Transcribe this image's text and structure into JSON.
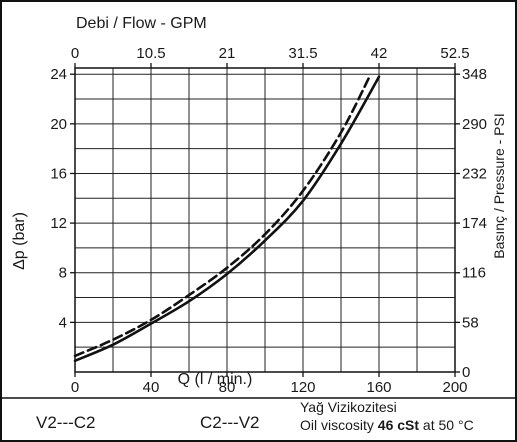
{
  "chart_data": {
    "type": "line",
    "title": "",
    "top_axis": {
      "label": "Debi / Flow - GPM",
      "ticks": [
        "0",
        "10.5",
        "21",
        "31.5",
        "42",
        "52.5"
      ],
      "range": [
        0,
        52.5
      ]
    },
    "x_axis": {
      "label": "Q (l / min.)",
      "ticks": [
        "0",
        "40",
        "80",
        "120",
        "160",
        "200"
      ],
      "range": [
        0,
        200
      ]
    },
    "y_axis": {
      "label": "Δp (bar)",
      "ticks": [
        "4",
        "8",
        "12",
        "16",
        "20",
        "24"
      ],
      "range": [
        0,
        24.5
      ]
    },
    "right_axis": {
      "label": "Basınç / Pressure - PSI",
      "ticks": [
        "0",
        "58",
        "116",
        "174",
        "232",
        "290",
        "348"
      ],
      "range": [
        0,
        355
      ]
    },
    "grid": true,
    "series": [
      {
        "name": "V2---C2",
        "style": "solid",
        "color": "#111111",
        "x": [
          0,
          20,
          40,
          60,
          80,
          100,
          120,
          140,
          160
        ],
        "y": [
          0.9,
          2.2,
          3.9,
          5.7,
          7.9,
          10.6,
          13.8,
          18.4,
          23.8
        ]
      },
      {
        "name": "C2---V2",
        "style": "dashed",
        "color": "#111111",
        "x": [
          0,
          20,
          40,
          60,
          80,
          100,
          120,
          140,
          155
        ],
        "y": [
          1.3,
          2.6,
          4.2,
          6.2,
          8.4,
          11.1,
          14.6,
          19.3,
          23.8
        ]
      }
    ]
  },
  "legend": {
    "solid_label": "V2---C2",
    "dashed_label": "C2---V2"
  },
  "viscosity": {
    "line1": "Yağ Vizikozitesi",
    "line2_prefix": "Oil viscosity ",
    "line2_value": "46 cSt",
    "line2_mid": " at ",
    "line2_temp": "50 °C"
  }
}
